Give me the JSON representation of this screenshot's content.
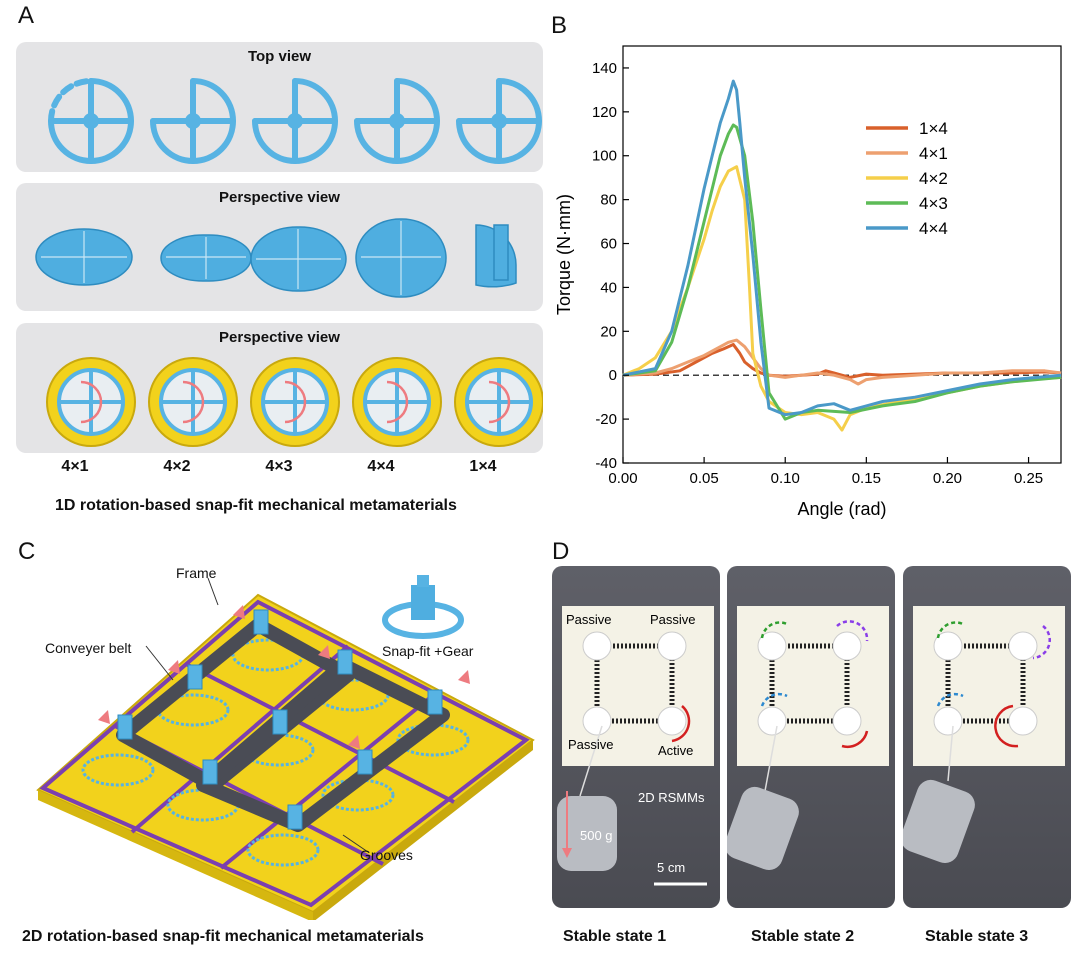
{
  "panelA": {
    "letter": "A",
    "rows": [
      {
        "title": "Top view"
      },
      {
        "title": "Perspective view"
      },
      {
        "title": "Perspective view"
      }
    ],
    "lattice_labels": [
      "4×1",
      "4×2",
      "4×3",
      "4×4",
      "1×4"
    ],
    "caption": "1D rotation-based snap-fit mechanical metamaterials"
  },
  "panelB": {
    "letter": "B"
  },
  "panelC": {
    "letter": "C",
    "labels": {
      "frame": "Frame",
      "conveyer": "Conveyer belt",
      "gear": "Snap-fit +Gear",
      "grooves": "Grooves"
    },
    "caption": "2D rotation-based snap-fit mechanical metamaterials"
  },
  "panelD": {
    "letter": "D",
    "photo1": {
      "passive_tl": "Passive",
      "passive_tr": "Passive",
      "passive_bl": "Passive",
      "active": "Active",
      "rsmm": "2D RSMMs",
      "weight": "500 g",
      "scale": "5 cm"
    },
    "captions": [
      "Stable state 1",
      "Stable state 2",
      "Stable state 3"
    ]
  },
  "colors": {
    "blue": "#57b3e3",
    "yellow": "#f2d21c",
    "purple": "#7b3fb0",
    "grey": "#4a4c55",
    "pink": "#ee7b80"
  },
  "chart_data": {
    "type": "line",
    "xlabel": "Angle (rad)",
    "ylabel": "Torque (N·mm)",
    "xlim": [
      0,
      0.27
    ],
    "ylim": [
      -40,
      150
    ],
    "xticks": [
      0.0,
      0.05,
      0.1,
      0.15,
      0.2,
      0.25
    ],
    "xtick_labels": [
      "0.00",
      "0.05",
      "0.10",
      "0.15",
      "0.20",
      "0.25"
    ],
    "yticks": [
      -40,
      -20,
      0,
      20,
      40,
      60,
      80,
      100,
      120,
      140
    ],
    "ytick_labels": [
      "-40",
      "-20",
      "0",
      "20",
      "40",
      "60",
      "80",
      "100",
      "120",
      "140"
    ],
    "zero_line": "dashed",
    "legend_position": "top-right",
    "series": [
      {
        "name": "1×4",
        "color": "#d9602b",
        "x": [
          0,
          0.02,
          0.035,
          0.045,
          0.055,
          0.062,
          0.068,
          0.072,
          0.075,
          0.08,
          0.085,
          0.09,
          0.1,
          0.11,
          0.12,
          0.125,
          0.13,
          0.14,
          0.15,
          0.16,
          0.18,
          0.2,
          0.22,
          0.24,
          0.26,
          0.27
        ],
        "y": [
          0,
          0.5,
          2,
          6,
          10,
          12,
          14,
          10,
          6,
          3,
          1,
          0,
          -0.5,
          0,
          0.5,
          2,
          1,
          -1,
          0.5,
          0,
          0.5,
          1,
          1,
          1,
          1.5,
          1
        ]
      },
      {
        "name": "4×1",
        "color": "#eda070",
        "x": [
          0,
          0.02,
          0.03,
          0.04,
          0.05,
          0.06,
          0.065,
          0.07,
          0.075,
          0.08,
          0.085,
          0.09,
          0.1,
          0.11,
          0.12,
          0.13,
          0.14,
          0.145,
          0.15,
          0.16,
          0.18,
          0.2,
          0.22,
          0.24,
          0.26,
          0.27
        ],
        "y": [
          0,
          1,
          3,
          6,
          9,
          13,
          15,
          16,
          13,
          8,
          3,
          0,
          -1,
          0,
          1,
          0,
          -2,
          -4,
          -2,
          -1,
          0,
          1,
          1,
          2,
          2,
          1
        ]
      },
      {
        "name": "4×2",
        "color": "#f5cf4a",
        "x": [
          0,
          0.01,
          0.02,
          0.03,
          0.04,
          0.05,
          0.055,
          0.06,
          0.065,
          0.07,
          0.075,
          0.078,
          0.08,
          0.085,
          0.09,
          0.1,
          0.11,
          0.12,
          0.13,
          0.135,
          0.14,
          0.15,
          0.17,
          0.2,
          0.22,
          0.25,
          0.27
        ],
        "y": [
          0,
          3,
          8,
          20,
          40,
          62,
          75,
          86,
          93,
          95,
          80,
          40,
          10,
          -5,
          -12,
          -17,
          -18,
          -17,
          -20,
          -25,
          -18,
          -15,
          -12,
          -8,
          -5,
          -2,
          -1
        ]
      },
      {
        "name": "4×3",
        "color": "#5dbb57",
        "x": [
          0,
          0.02,
          0.03,
          0.04,
          0.05,
          0.055,
          0.06,
          0.065,
          0.068,
          0.07,
          0.075,
          0.08,
          0.085,
          0.09,
          0.1,
          0.11,
          0.12,
          0.14,
          0.16,
          0.18,
          0.2,
          0.22,
          0.24,
          0.27
        ],
        "y": [
          0,
          2,
          15,
          40,
          70,
          85,
          100,
          110,
          114,
          113,
          100,
          70,
          30,
          -8,
          -20,
          -17,
          -16,
          -17,
          -14,
          -12,
          -8,
          -5,
          -3,
          -1
        ]
      },
      {
        "name": "4×4",
        "color": "#4a99c8",
        "x": [
          0,
          0.02,
          0.03,
          0.04,
          0.05,
          0.055,
          0.06,
          0.065,
          0.068,
          0.07,
          0.072,
          0.075,
          0.08,
          0.085,
          0.09,
          0.1,
          0.11,
          0.12,
          0.13,
          0.14,
          0.15,
          0.16,
          0.18,
          0.2,
          0.22,
          0.24,
          0.27
        ],
        "y": [
          0,
          3,
          20,
          50,
          85,
          100,
          115,
          126,
          134,
          130,
          115,
          90,
          55,
          15,
          -15,
          -18,
          -17,
          -14,
          -13,
          -16,
          -14,
          -12,
          -10,
          -7,
          -4,
          -2,
          0
        ]
      }
    ]
  }
}
